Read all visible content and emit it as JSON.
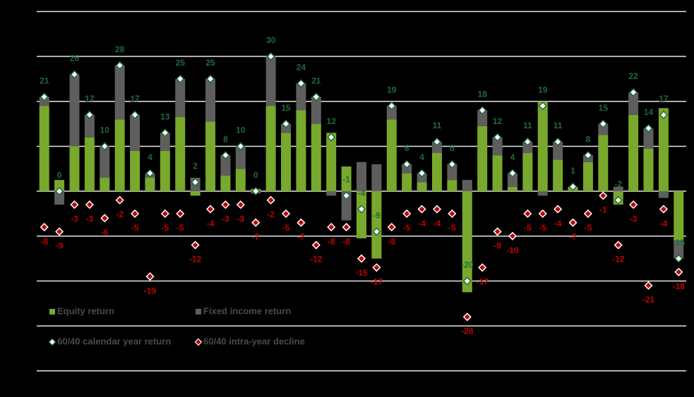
{
  "chart_data": {
    "type": "bar",
    "ylim": [
      -43,
      41
    ],
    "yticks": [
      -40,
      -30,
      -20,
      -10,
      0,
      10,
      20,
      30,
      40
    ],
    "grid": true,
    "series": [
      {
        "name": "Equity return",
        "type": "bar",
        "color": "#78a82c",
        "values": [
          19,
          2.5,
          10,
          12,
          3,
          16,
          9,
          3,
          9,
          16.5,
          -1,
          15.5,
          3.5,
          5,
          0.5,
          19,
          13,
          18,
          15,
          13,
          5.5,
          -10.5,
          -15,
          16,
          4,
          2,
          8.5,
          2.5,
          -22.5,
          14.5,
          8,
          1,
          8.5,
          20,
          7,
          1,
          6.5,
          12.5,
          -3,
          17,
          9.5,
          18.5,
          -11
        ]
      },
      {
        "name": "Fixed income return",
        "type": "bar",
        "color": "#5e5e5e",
        "values": [
          2,
          -3,
          16,
          5,
          7,
          12,
          8,
          1,
          4,
          8.5,
          3,
          9.5,
          4.5,
          5,
          -0.5,
          11,
          2,
          6,
          6,
          -1,
          -6.5,
          6.5,
          6,
          3,
          2,
          2,
          2.5,
          3.5,
          2.5,
          3.5,
          4,
          3,
          2.5,
          -1,
          4,
          0,
          1.5,
          2.5,
          1,
          5,
          4.5,
          -1.5,
          -4
        ]
      },
      {
        "name": "60/40 calendar year return",
        "type": "scatter",
        "color": "#1f6b3c",
        "values": [
          21,
          0,
          26,
          17,
          10,
          28,
          17,
          4,
          13,
          25,
          2,
          25,
          8,
          10,
          0,
          30,
          15,
          24,
          21,
          12,
          -1,
          -4,
          -9,
          19,
          6,
          4,
          11,
          6,
          -20,
          18,
          12,
          4,
          11,
          19,
          11,
          1,
          8,
          15,
          -2,
          22,
          14,
          17,
          -15
        ]
      },
      {
        "name": "60/40 intra-year decline",
        "type": "scatter",
        "color": "#c00000",
        "values": [
          -8,
          -9,
          -3,
          -3,
          -6,
          -2,
          -5,
          -19,
          -5,
          -5,
          -12,
          -4,
          -3,
          -3,
          -7,
          -2,
          -5,
          -7,
          -12,
          -8,
          -8,
          -15,
          -17,
          -8,
          -5,
          -4,
          -4,
          -5,
          -28,
          -17,
          -9,
          -10,
          -5,
          -5,
          -4,
          -7,
          -5,
          -1,
          -12,
          -3,
          -21,
          -4,
          -18
        ]
      }
    ]
  }
}
